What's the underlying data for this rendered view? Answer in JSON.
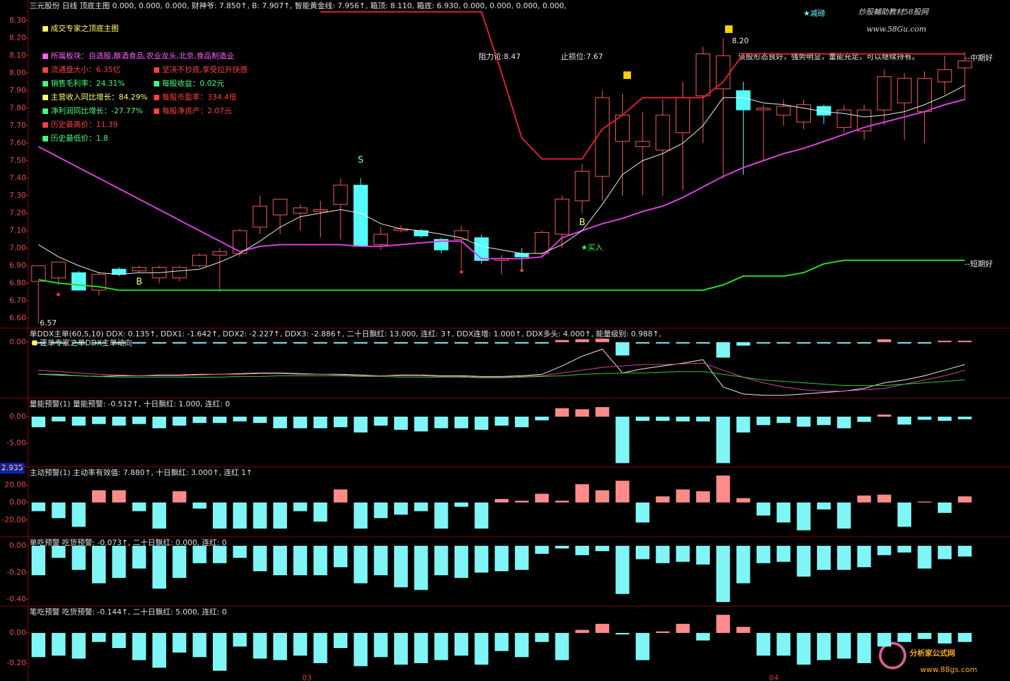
{
  "chart_data": [
    {
      "type": "candlestick",
      "title": "三元股份 日线 顶底主图 0.000, 0.000, 0.000, 财神爷: 7.850↑, B: 7.907↑, 智能黄金线: 7.956↑, 箱顶: 8.110, 箱底: 6.930, 0.000, 0.000, 0.000, 0.000,",
      "categories": [
        null,
        null,
        null,
        null,
        null,
        null,
        null,
        null,
        null,
        null,
        null,
        null,
        null,
        null,
        null,
        null,
        null,
        null,
        null,
        null,
        null,
        null,
        null,
        null,
        null,
        null,
        null,
        null,
        null,
        null,
        null,
        null,
        null,
        null,
        null,
        null,
        null,
        null,
        null,
        null,
        null,
        null,
        null,
        null,
        null,
        null,
        null
      ],
      "open": [
        6.81,
        6.83,
        6.86,
        6.76,
        6.88,
        6.87,
        6.83,
        6.83,
        6.9,
        6.96,
        6.97,
        7.12,
        7.19,
        7.2,
        7.21,
        7.25,
        7.36,
        7.02,
        7.1,
        7.1,
        7.05,
        7.05,
        7.06,
        6.93,
        6.97,
        6.97,
        7.08,
        7.27,
        7.41,
        7.61,
        7.58,
        7.56,
        7.66,
        7.87,
        7.91,
        7.9,
        7.79,
        7.76,
        7.72,
        7.81,
        7.69,
        7.67,
        7.79,
        7.83,
        7.78,
        7.95,
        8.03
      ],
      "high": [
        6.9,
        6.92,
        6.87,
        6.86,
        6.89,
        6.9,
        6.9,
        6.9,
        6.97,
        7.0,
        7.11,
        7.3,
        7.28,
        7.25,
        7.27,
        7.4,
        7.4,
        7.12,
        7.13,
        7.11,
        7.06,
        7.13,
        7.08,
        6.96,
        7.0,
        7.1,
        7.3,
        7.48,
        7.9,
        7.88,
        7.78,
        7.85,
        7.95,
        8.15,
        8.2,
        7.95,
        7.82,
        7.85,
        7.85,
        7.82,
        7.82,
        7.82,
        8.02,
        8.0,
        8.01,
        8.1,
        8.12
      ],
      "low": [
        6.57,
        6.79,
        6.76,
        6.73,
        6.84,
        6.86,
        6.8,
        6.81,
        6.89,
        6.75,
        6.95,
        7.08,
        7.08,
        7.1,
        7.06,
        7.05,
        7.01,
        6.99,
        7.09,
        7.06,
        6.97,
        6.88,
        6.91,
        6.85,
        6.88,
        6.95,
        7.0,
        7.2,
        7.27,
        7.3,
        7.3,
        7.3,
        7.33,
        7.6,
        7.4,
        7.42,
        7.5,
        7.7,
        7.68,
        7.71,
        7.66,
        7.62,
        7.7,
        7.62,
        7.6,
        7.88,
        7.85
      ],
      "close": [
        6.9,
        6.92,
        6.76,
        6.85,
        6.85,
        6.89,
        6.89,
        6.89,
        6.96,
        6.98,
        7.1,
        7.24,
        7.28,
        7.23,
        7.22,
        7.36,
        7.01,
        7.08,
        7.11,
        7.07,
        6.99,
        7.1,
        6.93,
        6.94,
        6.95,
        7.09,
        7.28,
        7.44,
        7.86,
        7.76,
        7.61,
        7.76,
        7.86,
        8.11,
        8.1,
        7.79,
        7.8,
        7.81,
        7.82,
        7.76,
        7.79,
        7.79,
        7.98,
        7.97,
        7.97,
        8.02,
        8.07
      ],
      "up_color": "#ff5a5a",
      "down_color": "#54fcfc",
      "signals": [
        null,
        null,
        null,
        null,
        null,
        "B",
        null,
        null,
        null,
        null,
        null,
        null,
        null,
        null,
        null,
        null,
        "S",
        null,
        null,
        null,
        null,
        null,
        null,
        null,
        null,
        null,
        null,
        "B",
        null,
        null,
        null,
        null,
        null,
        null,
        null,
        null,
        null,
        null,
        null,
        null,
        null,
        null,
        null,
        null,
        null,
        null,
        null
      ],
      "series": [
        {
          "color": "#e040e0",
          "values": [
            7.58,
            7.52,
            7.46,
            7.4,
            7.34,
            7.28,
            7.22,
            7.16,
            7.1,
            7.04,
            6.98,
            7.01,
            7.02,
            7.02,
            7.02,
            7.02,
            7.01,
            7.01,
            7.02,
            7.03,
            7.04,
            7.04,
            6.94,
            6.94,
            6.94,
            6.95,
            7.06,
            7.1,
            7.14,
            7.17,
            7.21,
            7.24,
            7.29,
            7.35,
            7.41,
            7.46,
            7.5,
            7.54,
            7.57,
            7.61,
            7.65,
            7.69,
            7.72,
            7.75,
            7.78,
            7.82,
            7.85
          ]
        },
        {
          "color": "#f0f0f0",
          "values": [
            7.02,
            6.95,
            6.9,
            6.86,
            6.85,
            6.86,
            6.86,
            6.87,
            6.88,
            6.92,
            6.97,
            7.04,
            7.12,
            7.18,
            7.2,
            7.22,
            7.2,
            7.14,
            7.11,
            7.1,
            7.08,
            7.06,
            7.01,
            6.99,
            6.97,
            6.97,
            7.02,
            7.1,
            7.25,
            7.42,
            7.5,
            7.54,
            7.6,
            7.7,
            7.86,
            7.86,
            7.83,
            7.82,
            7.8,
            7.78,
            7.77,
            7.75,
            7.76,
            7.78,
            7.82,
            7.87,
            7.93
          ]
        },
        {
          "color": "#e0202f",
          "values": [
            null,
            null,
            null,
            null,
            null,
            null,
            null,
            null,
            null,
            null,
            null,
            null,
            null,
            null,
            8.35,
            8.35,
            8.35,
            8.35,
            8.35,
            8.35,
            8.35,
            8.35,
            8.35,
            8.0,
            7.63,
            7.51,
            7.51,
            7.51,
            7.68,
            7.76,
            7.86,
            7.86,
            7.86,
            7.86,
            7.95,
            8.11,
            8.11,
            8.11,
            8.11,
            8.11,
            8.11,
            8.11,
            8.11,
            8.11,
            8.11,
            8.11,
            8.11
          ]
        },
        {
          "color": "#20e020",
          "values": [
            6.82,
            6.8,
            6.79,
            6.78,
            6.76,
            6.76,
            6.76,
            6.76,
            6.76,
            6.76,
            6.76,
            6.76,
            6.76,
            6.76,
            6.76,
            6.76,
            6.76,
            6.76,
            6.76,
            6.76,
            6.76,
            6.76,
            6.76,
            6.76,
            6.76,
            6.76,
            6.76,
            6.76,
            6.76,
            6.76,
            6.76,
            6.76,
            6.76,
            6.76,
            6.79,
            6.84,
            6.84,
            6.84,
            6.86,
            6.91,
            6.93,
            6.93,
            6.93,
            6.93,
            6.93,
            6.93,
            6.93
          ]
        }
      ],
      "ylim": [
        6.543,
        8.418
      ],
      "yticks": [
        {
          "value": 8.3,
          "label": "8.30"
        },
        {
          "value": 8.2,
          "label": "8.20"
        },
        {
          "value": 8.1,
          "label": "8.10"
        },
        {
          "value": 8.0,
          "label": "8.00"
        },
        {
          "value": 7.9,
          "label": "7.90"
        },
        {
          "value": 7.8,
          "label": "7.80"
        },
        {
          "value": 7.7,
          "label": "7.70"
        },
        {
          "value": 7.6,
          "label": "7.60"
        },
        {
          "value": 7.5,
          "label": "7.50"
        },
        {
          "value": 7.4,
          "label": "7.40"
        },
        {
          "value": 7.3,
          "label": "7.30"
        },
        {
          "value": 7.2,
          "label": "7.20"
        },
        {
          "value": 7.1,
          "label": "7.10"
        },
        {
          "value": 7.0,
          "label": "7.00"
        },
        {
          "value": 6.9,
          "label": "6.90"
        },
        {
          "value": 6.8,
          "label": "6.80"
        },
        {
          "value": 6.7,
          "label": "6.70"
        },
        {
          "value": 6.6,
          "label": "6.60"
        }
      ],
      "grid": false,
      "annotations": [
        "6.57",
        "8.20",
        "阻力位:8.47",
        "止损位:7.67",
        "该股形态良好，强势明显，量能充足，可以继续持有。",
        "--中期好",
        "--短期好",
        "★买入",
        "★减磅"
      ]
    },
    {
      "type": "bar",
      "title": "单DDX主单(60,5,10) DDX: 0.135↑, DDX1: -1.642↑, DDX2: -2.227↑, DDX3: -2.886↑, 二十日飘红: 13.000, 连红: 3↑, DDX连增: 1.000↑, DDX多头: 4.000↑, 能量级别: 0.988↑,",
      "subtitle": "逐单专家之单DDX主单动向",
      "values": [
        -0.1,
        -0.1,
        -0.1,
        -0.1,
        -0.1,
        -0.1,
        -0.1,
        -0.1,
        -0.1,
        -0.1,
        -0.1,
        -0.1,
        -0.1,
        -0.1,
        -0.1,
        -0.1,
        -0.1,
        -0.1,
        -0.1,
        -0.1,
        -0.1,
        -0.1,
        -0.1,
        -0.1,
        -0.1,
        -0.1,
        0.15,
        0.2,
        0.25,
        -0.95,
        -0.1,
        -0.1,
        -0.1,
        -0.1,
        -1.1,
        -0.25,
        -0.1,
        -0.1,
        -0.1,
        -0.1,
        -0.1,
        -0.1,
        0.2,
        -0.1,
        -0.1,
        0.1,
        0.1
      ],
      "pos_color": "#ff8a8a",
      "neg_color": "#7ff5f5",
      "series": [
        {
          "color": "#f0f0f0",
          "values": [
            -2.3,
            -2.35,
            -2.4,
            -2.45,
            -2.4,
            -2.4,
            -2.35,
            -2.35,
            -2.3,
            -2.3,
            -2.25,
            -2.2,
            -2.2,
            -2.25,
            -2.3,
            -2.3,
            -2.35,
            -2.4,
            -2.35,
            -2.35,
            -2.4,
            -2.4,
            -2.45,
            -2.45,
            -2.4,
            -2.3,
            -1.7,
            -1.0,
            -0.5,
            -2.2,
            -1.9,
            -1.7,
            -1.5,
            -1.25,
            -3.2,
            -3.7,
            -3.8,
            -3.8,
            -3.7,
            -3.6,
            -3.5,
            -3.3,
            -2.9,
            -2.7,
            -2.4,
            -2.0,
            -1.6
          ]
        },
        {
          "color": "#e040a0",
          "values": [
            -2.0,
            -2.1,
            -2.2,
            -2.3,
            -2.35,
            -2.4,
            -2.4,
            -2.4,
            -2.35,
            -2.3,
            -2.3,
            -2.25,
            -2.25,
            -2.3,
            -2.3,
            -2.35,
            -2.4,
            -2.4,
            -2.4,
            -2.4,
            -2.45,
            -2.45,
            -2.5,
            -2.5,
            -2.45,
            -2.4,
            -2.2,
            -2.0,
            -1.8,
            -1.7,
            -1.6,
            -1.6,
            -1.55,
            -1.5,
            -2.0,
            -2.5,
            -2.9,
            -3.2,
            -3.4,
            -3.5,
            -3.5,
            -3.4,
            -3.3,
            -3.0,
            -2.7,
            -2.4,
            -2.0
          ]
        },
        {
          "color": "#30d030",
          "values": [
            -2.3,
            -2.3,
            -2.4,
            -2.45,
            -2.5,
            -2.5,
            -2.5,
            -2.5,
            -2.5,
            -2.5,
            -2.45,
            -2.45,
            -2.4,
            -2.4,
            -2.4,
            -2.4,
            -2.45,
            -2.45,
            -2.5,
            -2.5,
            -2.5,
            -2.5,
            -2.55,
            -2.55,
            -2.5,
            -2.45,
            -2.4,
            -2.3,
            -2.25,
            -2.2,
            -2.2,
            -2.15,
            -2.1,
            -2.1,
            -2.3,
            -2.5,
            -2.7,
            -2.8,
            -2.9,
            -3.0,
            -3.1,
            -3.1,
            -3.1,
            -3.0,
            -2.9,
            -2.8,
            -2.7
          ]
        }
      ],
      "ylim": [
        -4,
        1
      ],
      "yticks": [
        {
          "value": 0,
          "label": "0.00"
        }
      ]
    },
    {
      "type": "bar",
      "title": "量能预警(1) 量能预警: -0.512↑, 十日飘红: 1.000, 连红: 0",
      "values": [
        -2.0,
        -0.9,
        -1.7,
        -1.4,
        -1.7,
        -1.4,
        -2.2,
        -1.7,
        -1.2,
        -1.2,
        -0.9,
        -1.2,
        -2.2,
        -2.2,
        -2.2,
        -2.0,
        -3.0,
        -1.7,
        -2.5,
        -2.8,
        -2.2,
        -2.2,
        -2.5,
        -1.7,
        -2.0,
        -0.7,
        1.6,
        1.4,
        1.8,
        -8.8,
        -0.8,
        -0.8,
        -0.9,
        -0.9,
        -8.8,
        -3.0,
        -1.6,
        -1.2,
        -1.9,
        -1.6,
        -2.2,
        -1.0,
        0.4,
        -1.5,
        -0.6,
        -0.8,
        -0.5
      ],
      "pos_color": "#ff8a8a",
      "neg_color": "#7ff5f5",
      "ylim": [
        -9.5,
        3.5
      ],
      "yticks": [
        {
          "value": 0,
          "label": "0.00"
        },
        {
          "value": -5,
          "label": "-5.00"
        }
      ]
    },
    {
      "type": "bar",
      "title": "主动预警(1) 主动率有效值: 7.880↑, 十日飘红: 3.000↑, 连红 1↑",
      "values": [
        -10,
        -18,
        -28,
        14,
        14,
        -10,
        -30,
        13,
        -7,
        -30,
        -30,
        -30,
        -30,
        -10,
        -22,
        15,
        -30,
        -18,
        -14,
        -10,
        -30,
        -5,
        -30,
        4,
        2,
        10,
        2,
        21,
        14,
        25,
        -23,
        7,
        15,
        13,
        31,
        5,
        -15,
        -23,
        -32,
        -8,
        -30,
        8,
        9,
        -28,
        1,
        -12,
        7
      ],
      "pos_color": "#ff8a8a",
      "neg_color": "#7ff5f5",
      "ylim": [
        -39.5,
        41
      ],
      "yticks": [
        {
          "value": 20,
          "label": "20.00"
        },
        {
          "value": 0,
          "label": "0.00"
        },
        {
          "value": -20,
          "label": "-20.00"
        }
      ]
    },
    {
      "type": "bar",
      "title": "单吃预警 吃货预警: -0.073↑, 二十日飘红: 0.000, 连红: 0",
      "values": [
        -0.22,
        -0.09,
        -0.18,
        -0.28,
        -0.24,
        -0.17,
        -0.32,
        -0.24,
        -0.13,
        -0.13,
        -0.09,
        -0.19,
        -0.22,
        -0.22,
        -0.22,
        -0.16,
        -0.28,
        -0.22,
        -0.31,
        -0.33,
        -0.22,
        -0.24,
        -0.2,
        -0.19,
        -0.18,
        -0.06,
        -0.02,
        -0.07,
        -0.04,
        -0.36,
        -0.1,
        -0.13,
        -0.12,
        -0.14,
        -0.42,
        -0.28,
        -0.13,
        -0.12,
        -0.23,
        -0.18,
        -0.18,
        -0.16,
        -0.07,
        -0.05,
        -0.17,
        -0.1,
        -0.08
      ],
      "pos_color": "#ff8a8a",
      "neg_color": "#7ff5f5",
      "ylim": [
        -0.451,
        0.067
      ],
      "yticks": [
        {
          "value": 0,
          "label": "0.00"
        },
        {
          "value": -0.2,
          "label": "-0.20"
        },
        {
          "value": -0.4,
          "label": "-0.40"
        }
      ]
    },
    {
      "type": "bar",
      "title": "笔吃预警 吃货预警: -0.144↑, 二十日飘红: 5.000, 连红: 0",
      "values": [
        -0.16,
        -0.15,
        -0.17,
        -0.06,
        -0.1,
        -0.18,
        -0.23,
        -0.13,
        -0.16,
        -0.25,
        -0.09,
        -0.17,
        -0.18,
        -0.15,
        -0.2,
        -0.1,
        -0.22,
        -0.16,
        -0.21,
        -0.2,
        -0.18,
        -0.15,
        -0.21,
        -0.12,
        -0.16,
        -0.06,
        -0.18,
        0.02,
        0.06,
        -0.01,
        -0.18,
        0.01,
        0.06,
        -0.05,
        0.12,
        0.04,
        -0.15,
        -0.15,
        -0.21,
        -0.18,
        -0.17,
        -0.2,
        -0.09,
        -0.06,
        -0.04,
        -0.07,
        -0.06
      ],
      "pos_color": "#ff8a8a",
      "neg_color": "#7ff5f5",
      "ylim": [
        -0.318,
        0.177
      ],
      "yticks": [
        {
          "value": 0,
          "label": "0.00"
        },
        {
          "value": -0.2,
          "label": "-0.20"
        }
      ]
    }
  ],
  "info": {
    "rows": [
      [
        {
          "text": "成交专家之顶底主图",
          "color": "#ffff60"
        }
      ],
      [
        {
          "text": "所属板块：自选股,酿酒食品,农业龙头,北京,食品制造业",
          "color": "#ff60ff"
        }
      ],
      [
        {
          "text": "流通盘大小：6.35亿",
          "color": "#ff4040"
        },
        {
          "text": "坚决不抄底,享受拉升快感",
          "color": "#ff4040"
        }
      ],
      [
        {
          "text": "销售毛利率：24.31%",
          "color": "#40ff80"
        },
        {
          "text": "每股收益：0.02元",
          "color": "#40ff80"
        }
      ],
      [
        {
          "text": "主营收入同比增长：84.29%",
          "color": "#ffff60"
        },
        {
          "text": "每股市盈率：334.4倍",
          "color": "#ff4040"
        }
      ],
      [
        {
          "text": "净利润同比增长：-27.77%",
          "color": "#40ff80"
        },
        {
          "text": "每股净资产：2.07元",
          "color": "#ff4040"
        }
      ],
      [
        {
          "text": "历史最高价：11.39",
          "color": "#ff4040"
        }
      ],
      [
        {
          "text": "历史最低价：1.8",
          "color": "#40ff80"
        }
      ]
    ]
  },
  "axis_marker": "2.935",
  "date_labels": [
    "03",
    "04"
  ],
  "watermarks": [
    "炒股輔助教材58股网",
    "www.58Gu.com",
    "分析家公式网",
    "www.88gs.com"
  ]
}
